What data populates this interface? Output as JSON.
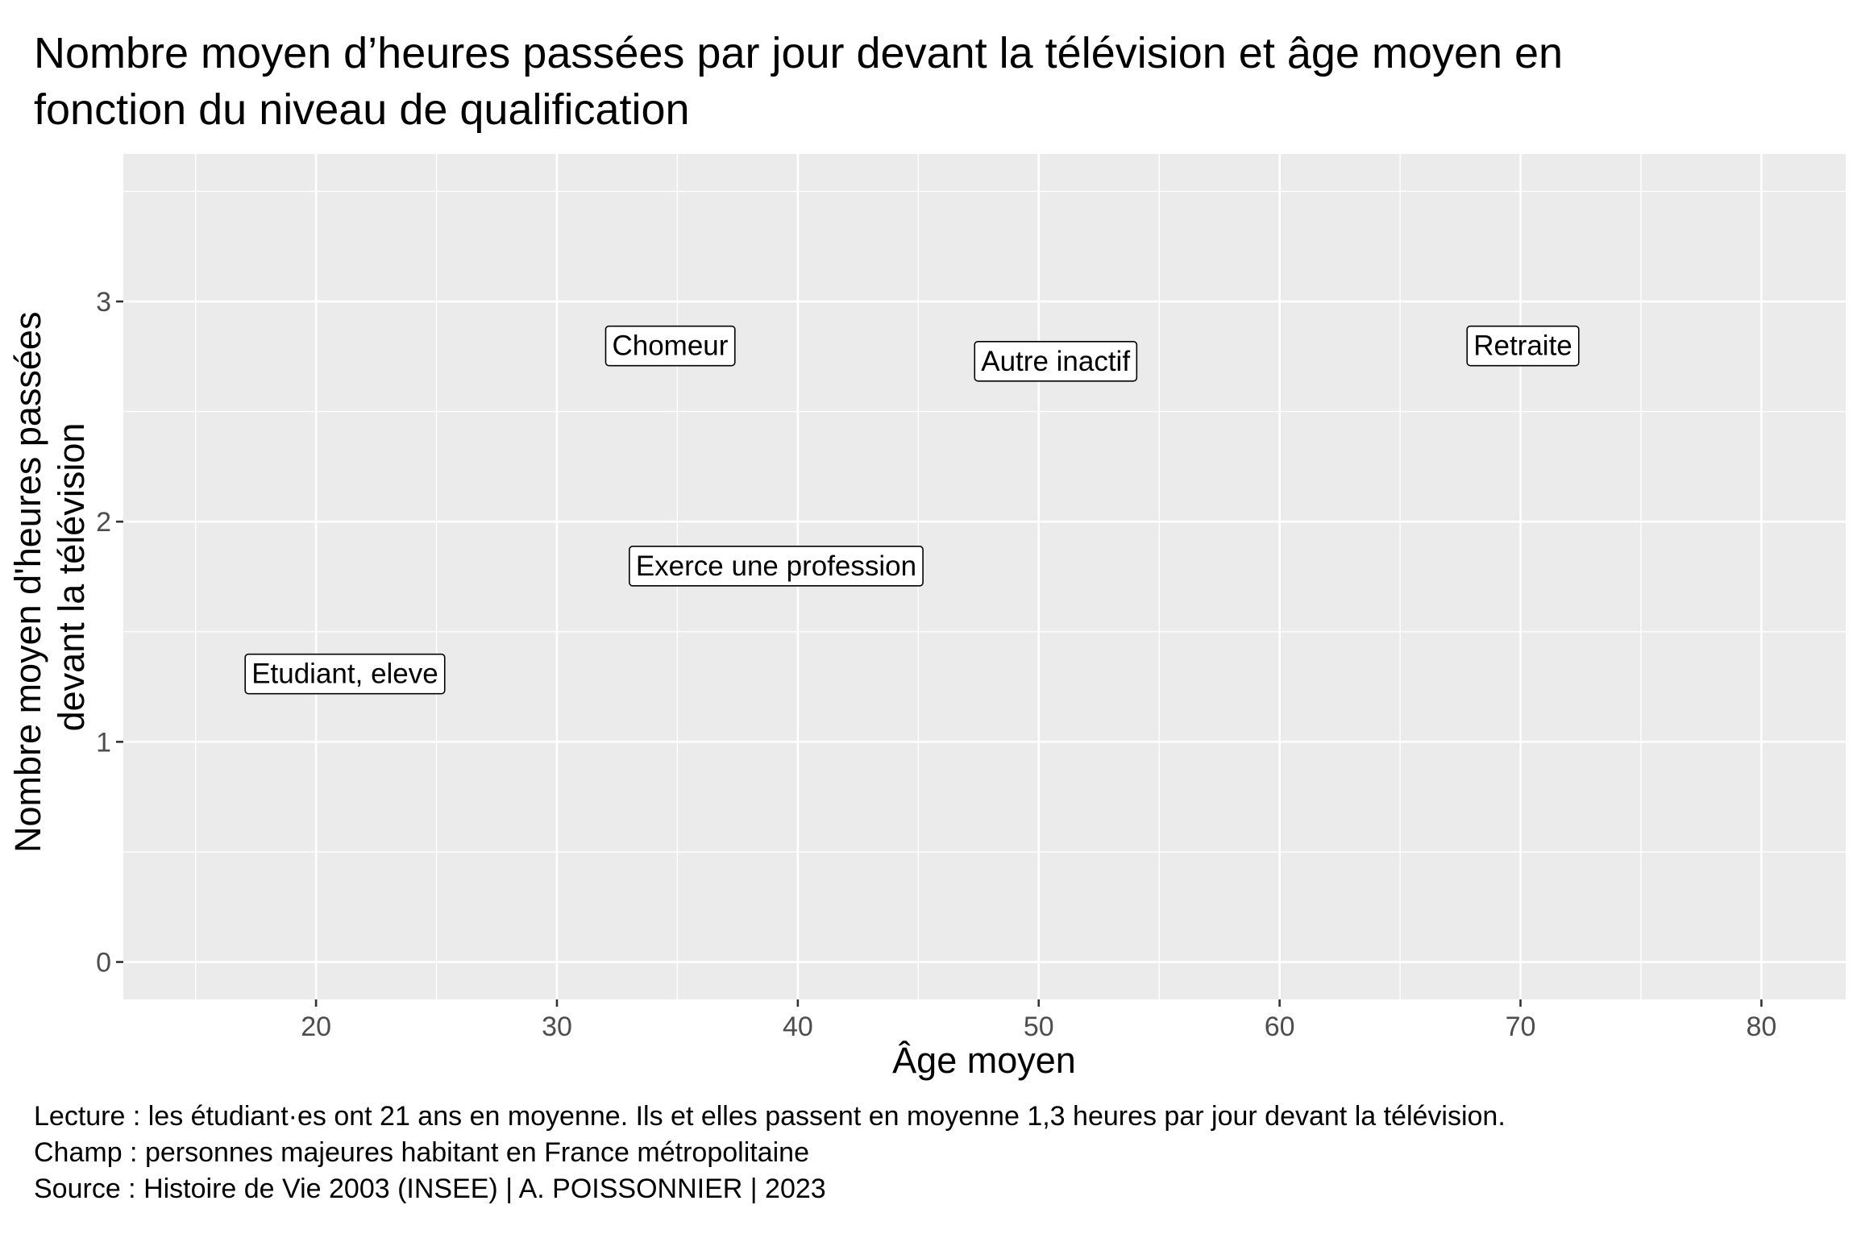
{
  "chart_data": {
    "type": "scatter",
    "title_lines": [
      "Nombre moyen d’heures passées par jour devant la télévision et âge moyen en",
      "fonction du niveau de qualification"
    ],
    "xlabel": "Âge moyen",
    "ylabel_lines": [
      "Nombre moyen d'heures passées",
      "devant la télévision"
    ],
    "xlim": [
      12,
      83.5
    ],
    "ylim": [
      -0.17,
      3.67
    ],
    "x_ticks": [
      20,
      30,
      40,
      50,
      60,
      70,
      80
    ],
    "x_tick_labels": [
      "20",
      "30",
      "40",
      "50",
      "60",
      "70",
      "80"
    ],
    "x_minor_ticks": [
      15,
      25,
      35,
      45,
      55,
      65,
      75
    ],
    "y_ticks": [
      0,
      1,
      2,
      3
    ],
    "y_tick_labels": [
      "0",
      "1",
      "2",
      "3"
    ],
    "y_minor_ticks": [
      0.5,
      1.5,
      2.5,
      3.5
    ],
    "grid": true,
    "legend": "none",
    "background_color": "#ebebeb",
    "grid_color": "#ffffff",
    "points": [
      {
        "label": "Chomeur",
        "x": 34.7,
        "y": 2.8
      },
      {
        "label": "Autre inactif",
        "x": 50.7,
        "y": 2.73
      },
      {
        "label": "Retraite",
        "x": 70.1,
        "y": 2.8
      },
      {
        "label": "Exerce une profession",
        "x": 39.1,
        "y": 1.8
      },
      {
        "label": "Etudiant, eleve",
        "x": 21.2,
        "y": 1.31
      }
    ],
    "caption_lines": [
      "Lecture : les étudiant·es ont 21 ans en moyenne. Ils et elles passent en moyenne 1,3 heures par jour devant la télévision.",
      "Champ : personnes majeures habitant en France métropolitaine",
      "Source : Histoire de Vie 2003 (INSEE) | A. POISSONNIER | 2023"
    ]
  }
}
